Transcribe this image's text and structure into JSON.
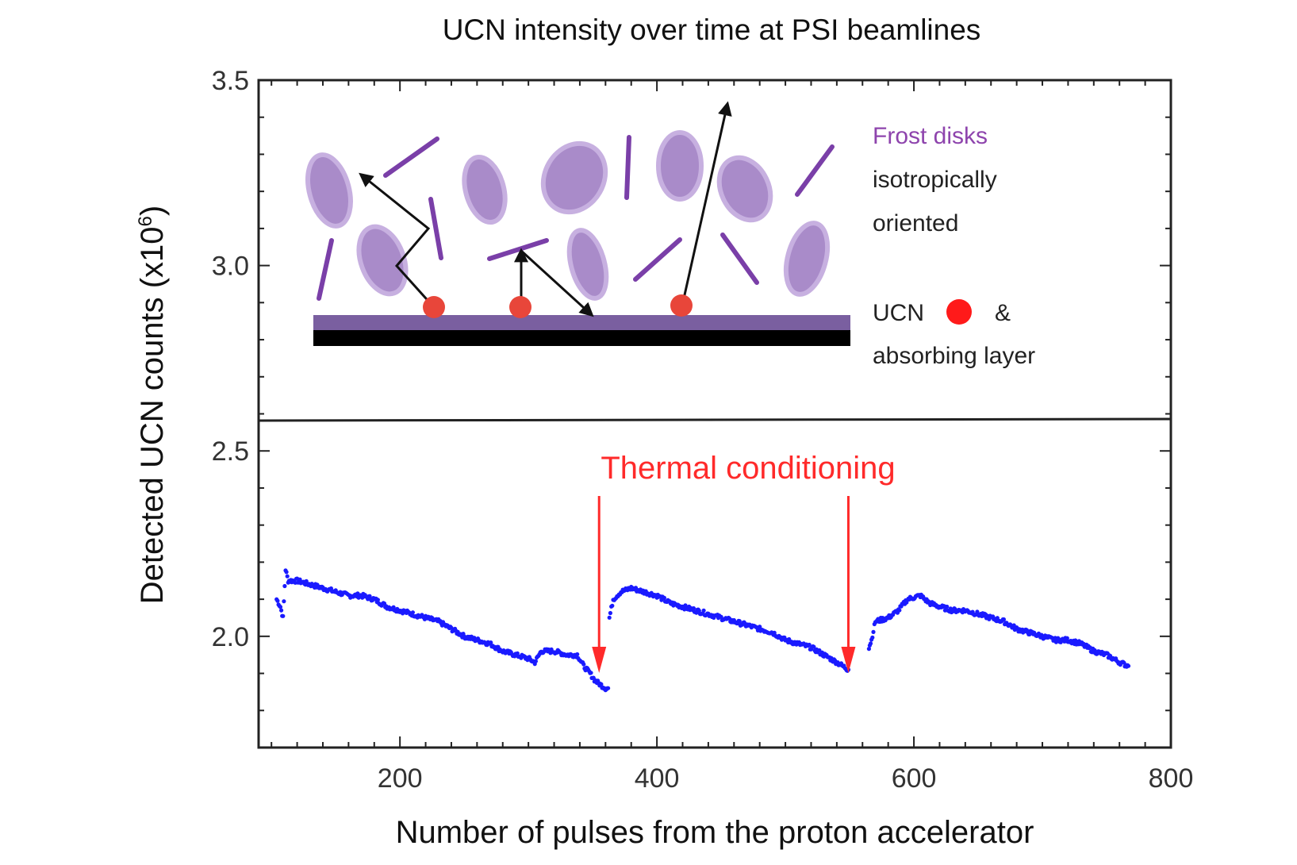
{
  "chart_data": {
    "type": "scatter",
    "title": "UCN intensity over time at PSI beamlines",
    "xlabel": "Number of pulses from the proton accelerator",
    "ylabel_main": "Detected UCN counts (x10",
    "ylabel_exp": "6",
    "ylabel_close": ")",
    "xlim": [
      90,
      800
    ],
    "ylim": [
      1.7,
      3.5
    ],
    "x_ticks": [
      200,
      400,
      600,
      800
    ],
    "y_ticks": [
      2.0,
      2.5,
      3.0,
      3.5
    ],
    "y_tick_labels": [
      "2.0",
      "2.5",
      "3.0",
      "3.5"
    ],
    "grid": false,
    "point_color": "#1a1aff",
    "series": [
      {
        "segments": [
          {
            "x_start": 104,
            "x_end": 362,
            "points": [
              [
                104,
                2.1
              ],
              [
                107,
                2.08
              ],
              [
                109,
                2.05
              ],
              [
                111,
                2.18
              ],
              [
                113,
                2.15
              ],
              [
                120,
                2.15
              ],
              [
                130,
                2.14
              ],
              [
                140,
                2.13
              ],
              [
                150,
                2.12
              ],
              [
                160,
                2.11
              ],
              [
                170,
                2.11
              ],
              [
                180,
                2.1
              ],
              [
                190,
                2.08
              ],
              [
                200,
                2.07
              ],
              [
                210,
                2.06
              ],
              [
                220,
                2.05
              ],
              [
                230,
                2.04
              ],
              [
                240,
                2.02
              ],
              [
                250,
                2.0
              ],
              [
                260,
                1.99
              ],
              [
                270,
                1.98
              ],
              [
                280,
                1.96
              ],
              [
                290,
                1.95
              ],
              [
                300,
                1.94
              ],
              [
                305,
                1.93
              ],
              [
                310,
                1.96
              ],
              [
                320,
                1.96
              ],
              [
                330,
                1.95
              ],
              [
                338,
                1.95
              ],
              [
                343,
                1.92
              ],
              [
                348,
                1.9
              ],
              [
                352,
                1.88
              ],
              [
                356,
                1.87
              ],
              [
                360,
                1.86
              ],
              [
                362,
                1.86
              ]
            ]
          },
          {
            "x_start": 363,
            "x_end": 549,
            "points": [
              [
                363,
                2.05
              ],
              [
                366,
                2.1
              ],
              [
                372,
                2.12
              ],
              [
                380,
                2.13
              ],
              [
                390,
                2.12
              ],
              [
                400,
                2.11
              ],
              [
                410,
                2.09
              ],
              [
                420,
                2.08
              ],
              [
                430,
                2.07
              ],
              [
                440,
                2.06
              ],
              [
                450,
                2.05
              ],
              [
                460,
                2.04
              ],
              [
                470,
                2.03
              ],
              [
                480,
                2.02
              ],
              [
                490,
                2.01
              ],
              [
                500,
                1.99
              ],
              [
                510,
                1.98
              ],
              [
                520,
                1.97
              ],
              [
                530,
                1.95
              ],
              [
                540,
                1.93
              ],
              [
                549,
                1.91
              ]
            ]
          },
          {
            "x_start": 565,
            "x_end": 767,
            "points": [
              [
                565,
                1.97
              ],
              [
                567,
                1.99
              ],
              [
                570,
                2.04
              ],
              [
                580,
                2.05
              ],
              [
                588,
                2.07
              ],
              [
                595,
                2.1
              ],
              [
                605,
                2.11
              ],
              [
                612,
                2.09
              ],
              [
                620,
                2.08
              ],
              [
                630,
                2.07
              ],
              [
                640,
                2.07
              ],
              [
                650,
                2.06
              ],
              [
                660,
                2.05
              ],
              [
                670,
                2.04
              ],
              [
                680,
                2.02
              ],
              [
                690,
                2.01
              ],
              [
                700,
                2.0
              ],
              [
                710,
                1.99
              ],
              [
                720,
                1.99
              ],
              [
                730,
                1.98
              ],
              [
                740,
                1.96
              ],
              [
                750,
                1.95
              ],
              [
                760,
                1.93
              ],
              [
                767,
                1.92
              ]
            ]
          }
        ]
      }
    ],
    "annotations": {
      "thermal_label": "Thermal conditioning",
      "arrow_x": [
        355,
        549
      ],
      "color": "#ff2a2a"
    }
  },
  "inset": {
    "legend": {
      "frost_line1": "Frost disks",
      "frost_line2": "isotropically",
      "frost_line3": "oriented",
      "ucn_label": "UCN",
      "ucn_amp": "&",
      "layer_label": "absorbing layer"
    },
    "colors": {
      "disk_fill": "#a98bc9",
      "disk_stroke": "#c3a8df",
      "stick": "#7a3fa8",
      "ucn": "#e8463a",
      "layer_top": "#7a5fa0",
      "layer_bottom": "#000000",
      "frost_text": "#8e44ad"
    }
  }
}
